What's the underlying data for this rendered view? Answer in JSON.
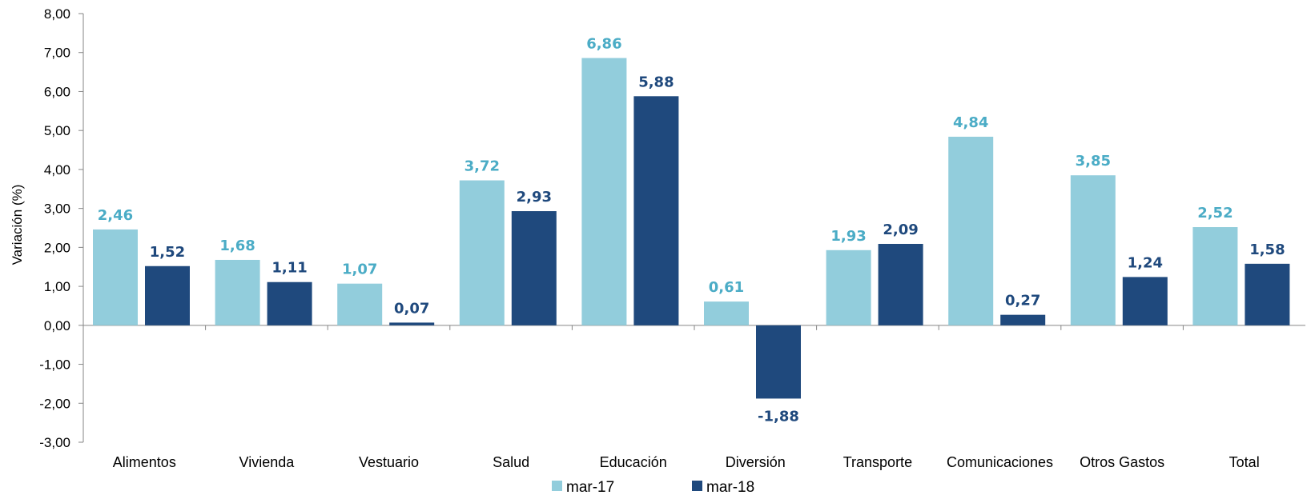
{
  "chart_data": {
    "type": "bar",
    "categories": [
      "Alimentos",
      "Vivienda",
      "Vestuario",
      "Salud",
      "Educación",
      "Diversión",
      "Transporte",
      "Comunicaciones",
      "Otros Gastos",
      "Total"
    ],
    "series": [
      {
        "name": "mar-17",
        "color": "#92CDDC",
        "label_color": "#4BACC6",
        "values": [
          2.46,
          1.68,
          1.07,
          3.72,
          6.86,
          0.61,
          1.93,
          4.84,
          3.85,
          2.52
        ],
        "labels": [
          "2,46",
          "1,68",
          "1,07",
          "3,72",
          "6,86",
          "0,61",
          "1,93",
          "4,84",
          "3,85",
          "2,52"
        ]
      },
      {
        "name": "mar-18",
        "color": "#1F497D",
        "label_color": "#1F497D",
        "values": [
          1.52,
          1.11,
          0.07,
          2.93,
          5.88,
          -1.88,
          2.09,
          0.27,
          1.24,
          1.58
        ],
        "labels": [
          "1,52",
          "1,11",
          "0,07",
          "2,93",
          "5,88",
          "-1,88",
          "2,09",
          "0,27",
          "1,24",
          "1,58"
        ]
      }
    ],
    "ylabel": "Variación (%)",
    "xlabel": "",
    "ylim": [
      -3,
      8
    ],
    "yticks": [
      8,
      7,
      6,
      5,
      4,
      3,
      2,
      1,
      0,
      -1,
      -2,
      -3
    ],
    "ytick_labels": [
      "8,00",
      "7,00",
      "6,00",
      "5,00",
      "4,00",
      "3,00",
      "2,00",
      "1,00",
      "0,00",
      "-1,00",
      "-2,00",
      "-3,00"
    ],
    "grid": false,
    "legend_position": "bottom-center"
  }
}
